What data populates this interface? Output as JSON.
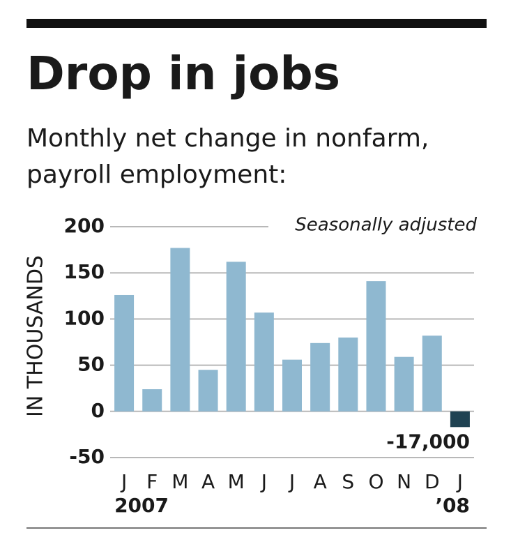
{
  "chart_data": {
    "type": "bar",
    "title": "Drop in jobs",
    "subtitle": [
      "Monthly net change in nonfarm,",
      "payroll employment:"
    ],
    "y_label": "IN THOUSANDS",
    "annotation": "Seasonally adjusted",
    "categories": [
      "J",
      "F",
      "M",
      "A",
      "M",
      "J",
      "J",
      "A",
      "S",
      "O",
      "N",
      "D",
      "J"
    ],
    "year_labels": [
      "2007",
      null,
      null,
      null,
      null,
      null,
      null,
      null,
      null,
      null,
      null,
      null,
      "’08"
    ],
    "values": [
      126,
      24,
      177,
      45,
      162,
      107,
      56,
      74,
      80,
      141,
      59,
      82,
      -17
    ],
    "value_labels": [
      null,
      null,
      null,
      null,
      null,
      null,
      null,
      null,
      null,
      null,
      null,
      null,
      "-17,000"
    ],
    "colors": [
      "#8fb8d0",
      "#8fb8d0",
      "#8fb8d0",
      "#8fb8d0",
      "#8fb8d0",
      "#8fb8d0",
      "#8fb8d0",
      "#8fb8d0",
      "#8fb8d0",
      "#8fb8d0",
      "#8fb8d0",
      "#8fb8d0",
      "#1f4252"
    ],
    "ylim": [
      -50,
      200
    ],
    "yticks": [
      -50,
      0,
      50,
      100,
      150,
      200
    ],
    "grid": true
  }
}
